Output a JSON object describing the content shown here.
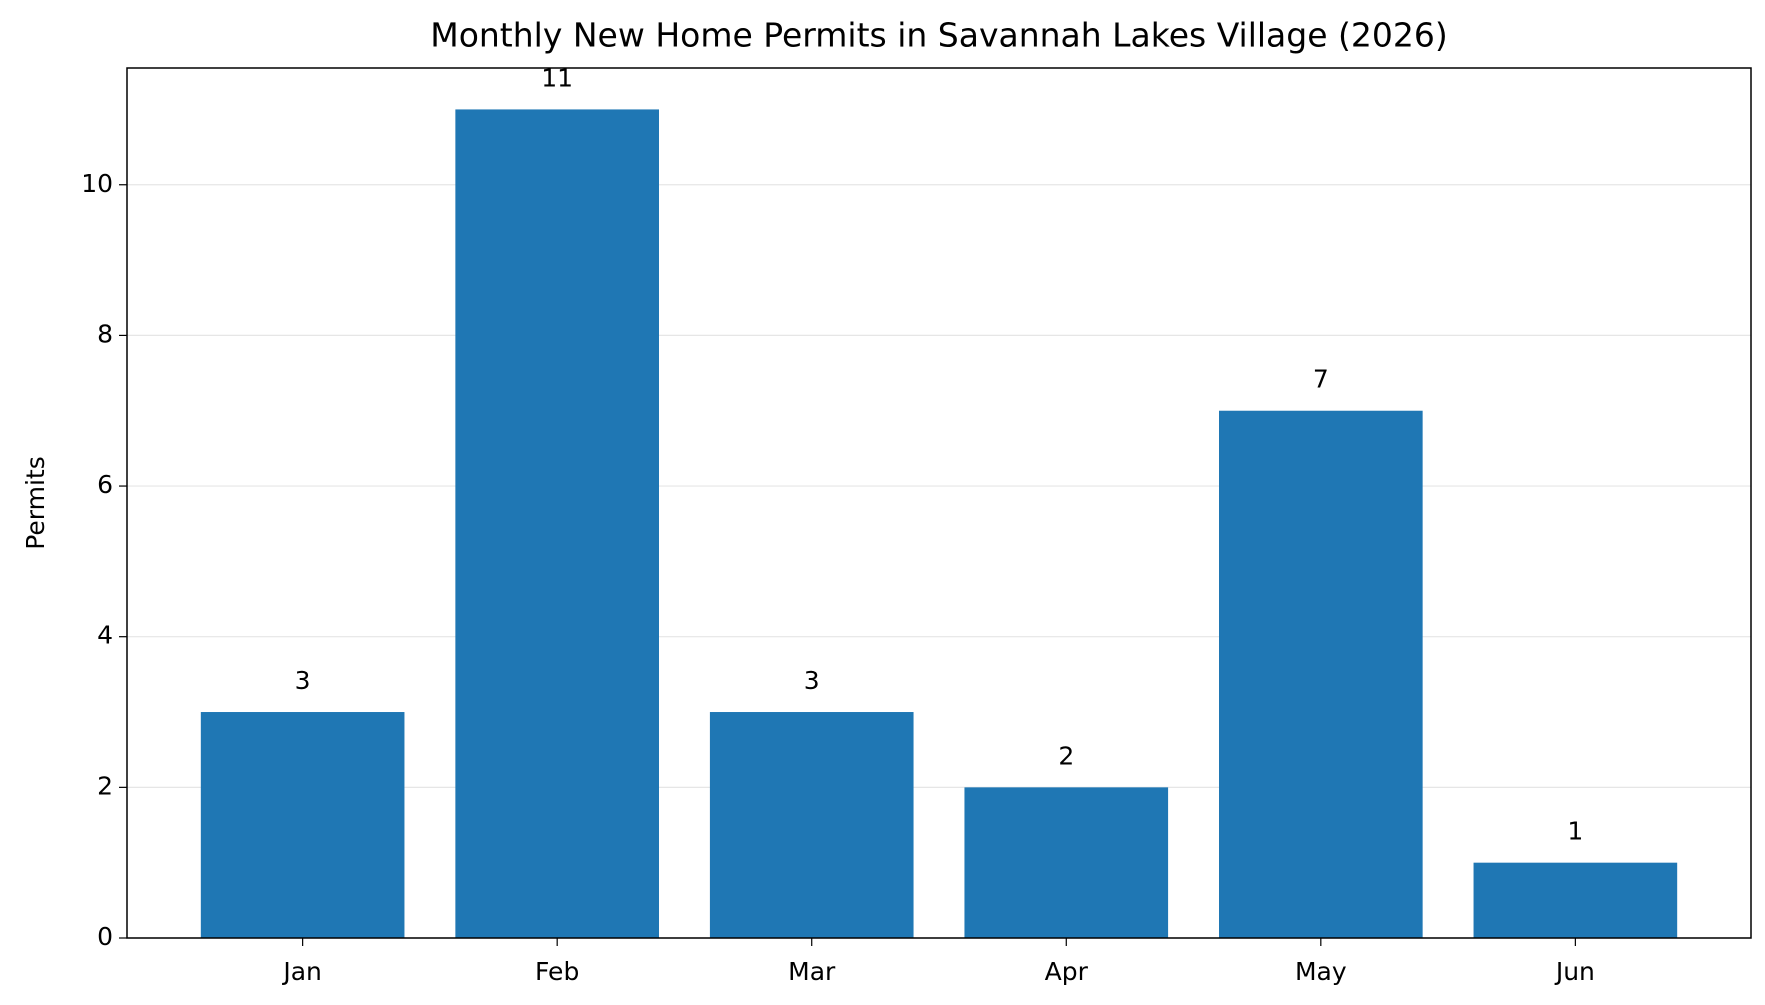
{
  "chart_data": {
    "type": "bar",
    "title": "Monthly New Home Permits in Savannah Lakes Village (2026)",
    "y_label": "Permits",
    "categories": [
      "Jan",
      "Feb",
      "Mar",
      "Apr",
      "May",
      "Jun"
    ],
    "values": [
      3,
      11,
      3,
      2,
      7,
      1
    ],
    "color": "#1f77b4",
    "ylim": [
      0,
      11.55
    ],
    "yticks": [
      0,
      2,
      4,
      6,
      8,
      10
    ],
    "grid": true
  }
}
